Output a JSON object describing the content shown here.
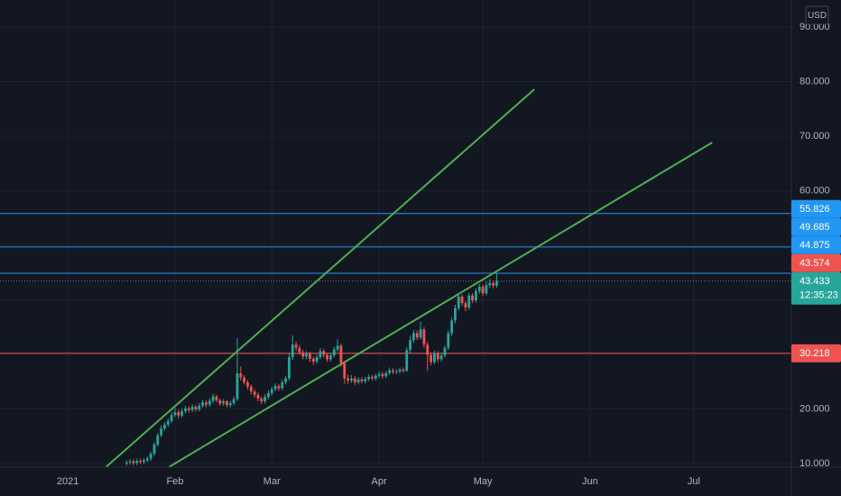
{
  "chart_data": {
    "type": "candlestick",
    "currency": "USD",
    "up_color": "#26a69a",
    "down_color": "#ef5350",
    "grid": true,
    "xlim": [
      -18.6,
      210.2
    ],
    "ylim": [
      9.34,
      94.96
    ],
    "xticks": [
      {
        "value": 1,
        "label": "2021"
      },
      {
        "value": 32,
        "label": "Feb"
      },
      {
        "value": 60,
        "label": "Mar"
      },
      {
        "value": 91,
        "label": "Apr"
      },
      {
        "value": 121,
        "label": "May"
      },
      {
        "value": 152,
        "label": "Jun"
      },
      {
        "value": 182,
        "label": "Jul"
      }
    ],
    "yticks": [
      {
        "value": 10,
        "label": "10.000"
      },
      {
        "value": 20,
        "label": "20.000"
      },
      {
        "value": 30,
        "label": "30.000"
      },
      {
        "value": 40,
        "label": "40.000"
      },
      {
        "value": 50,
        "label": "50.000"
      },
      {
        "value": 60,
        "label": "60.000"
      },
      {
        "value": 70,
        "label": "70.000"
      },
      {
        "value": 80,
        "label": "80.000"
      },
      {
        "value": 90,
        "label": "90.000"
      }
    ],
    "x": [
      18,
      19,
      20,
      21,
      22,
      23,
      24,
      25,
      26,
      27,
      28,
      29,
      30,
      31,
      32,
      33,
      34,
      35,
      36,
      37,
      38,
      39,
      40,
      41,
      42,
      43,
      44,
      45,
      46,
      47,
      48,
      49,
      50,
      51,
      52,
      53,
      54,
      55,
      56,
      57,
      58,
      59,
      60,
      61,
      62,
      63,
      64,
      65,
      66,
      67,
      68,
      69,
      70,
      71,
      72,
      73,
      74,
      75,
      76,
      77,
      78,
      79,
      80,
      81,
      82,
      83,
      84,
      85,
      86,
      87,
      88,
      89,
      90,
      91,
      92,
      93,
      94,
      95,
      96,
      97,
      98,
      99,
      100,
      101,
      102,
      103,
      104,
      105,
      106,
      107,
      108,
      109,
      110,
      111,
      112,
      113,
      114,
      115,
      116,
      117,
      118,
      119,
      120,
      121,
      122,
      123,
      124,
      125
    ],
    "open": [
      10.0,
      10.2,
      10.4,
      10.1,
      10.5,
      10.3,
      10.6,
      10.9,
      11.8,
      13.5,
      15.2,
      16.4,
      17.1,
      17.8,
      18.9,
      19.4,
      18.8,
      19.6,
      20.1,
      19.8,
      20.4,
      19.9,
      20.6,
      21.2,
      20.8,
      21.5,
      22.3,
      21.6,
      21.0,
      21.4,
      20.7,
      21.1,
      21.8,
      26.5,
      25.8,
      24.9,
      24.1,
      23.2,
      22.6,
      21.9,
      21.4,
      22.2,
      22.9,
      23.6,
      24.2,
      23.8,
      24.9,
      25.6,
      29.5,
      31.8,
      31.2,
      30.4,
      29.6,
      30.1,
      29.2,
      28.7,
      29.5,
      30.6,
      29.9,
      29.1,
      29.8,
      30.9,
      31.6,
      28.4,
      25.6,
      25.2,
      25.6,
      24.9,
      25.4,
      25.1,
      25.5,
      25.9,
      25.6,
      26.1,
      26.4,
      26.0,
      26.6,
      27.1,
      26.8,
      26.9,
      27.2,
      27.0,
      30.8,
      32.6,
      33.9,
      33.1,
      34.6,
      31.8,
      29.9,
      28.6,
      30.2,
      29.1,
      29.8,
      31.2,
      33.9,
      36.2,
      38.5,
      40.6,
      39.4,
      38.6,
      40.8,
      39.9,
      41.6,
      42.4,
      41.2,
      42.7,
      43.1,
      42.6
    ],
    "high": [
      10.6,
      10.8,
      10.8,
      10.9,
      10.9,
      11.0,
      11.3,
      12.2,
      13.9,
      15.6,
      17.0,
      17.6,
      18.3,
      19.4,
      20.2,
      19.9,
      20.1,
      20.6,
      20.5,
      20.9,
      20.8,
      21.1,
      21.7,
      21.6,
      22.0,
      22.8,
      22.6,
      21.9,
      21.8,
      21.7,
      21.5,
      22.3,
      33.0,
      27.8,
      26.2,
      25.3,
      24.5,
      23.6,
      23.0,
      22.3,
      22.7,
      23.4,
      24.1,
      24.7,
      24.6,
      25.4,
      26.1,
      30.2,
      33.5,
      32.4,
      31.7,
      30.9,
      30.6,
      30.5,
      29.6,
      30.0,
      31.2,
      31.0,
      30.3,
      30.3,
      31.4,
      32.8,
      32.0,
      28.8,
      26.3,
      26.2,
      26.0,
      25.8,
      25.8,
      25.9,
      26.3,
      26.3,
      26.5,
      26.9,
      26.8,
      27.0,
      27.6,
      27.5,
      27.3,
      27.6,
      27.6,
      31.3,
      33.4,
      34.5,
      34.4,
      36.0,
      35.0,
      32.3,
      30.4,
      30.7,
      30.6,
      30.3,
      31.7,
      34.4,
      36.8,
      39.1,
      41.2,
      41.0,
      39.8,
      41.3,
      41.2,
      42.1,
      42.9,
      42.8,
      43.3,
      43.8,
      43.6,
      44.9
    ],
    "low": [
      9.6,
      9.8,
      9.7,
      9.7,
      9.9,
      9.9,
      10.2,
      10.5,
      11.4,
      13.1,
      14.8,
      16.0,
      16.7,
      17.4,
      18.5,
      18.2,
      18.4,
      19.2,
      19.3,
      19.4,
      19.5,
      19.5,
      20.2,
      20.3,
      20.4,
      21.1,
      21.2,
      20.6,
      20.6,
      20.3,
      20.3,
      20.7,
      21.5,
      25.2,
      24.5,
      23.6,
      22.7,
      22.1,
      21.4,
      20.9,
      21.0,
      21.8,
      22.5,
      23.2,
      23.3,
      23.4,
      24.5,
      25.2,
      29.0,
      30.6,
      29.9,
      29.1,
      29.1,
      28.6,
      28.1,
      28.3,
      29.1,
      29.4,
      28.6,
      28.7,
      29.4,
      30.5,
      27.8,
      24.6,
      24.6,
      24.8,
      24.4,
      24.5,
      24.7,
      24.7,
      25.1,
      25.2,
      25.2,
      25.7,
      25.6,
      25.6,
      26.2,
      26.4,
      26.4,
      26.5,
      26.6,
      26.8,
      30.2,
      32.1,
      32.6,
      32.7,
      31.2,
      27.0,
      28.0,
      28.2,
      28.5,
      28.7,
      29.4,
      30.8,
      33.4,
      35.7,
      38.0,
      38.9,
      37.9,
      38.2,
      39.4,
      39.5,
      41.1,
      40.7,
      40.8,
      42.2,
      42.1,
      42.2
    ],
    "close": [
      10.2,
      10.4,
      10.1,
      10.5,
      10.3,
      10.6,
      10.9,
      11.8,
      13.5,
      15.2,
      16.4,
      17.1,
      17.8,
      18.9,
      19.4,
      18.8,
      19.6,
      20.1,
      19.8,
      20.4,
      19.9,
      20.6,
      21.2,
      20.8,
      21.5,
      22.3,
      21.6,
      21.0,
      21.4,
      20.7,
      21.1,
      21.8,
      26.5,
      25.8,
      24.9,
      24.1,
      23.2,
      22.6,
      21.9,
      21.4,
      22.2,
      22.9,
      23.6,
      24.2,
      23.8,
      24.9,
      25.6,
      29.5,
      31.8,
      31.2,
      30.4,
      29.6,
      30.1,
      29.2,
      28.7,
      29.5,
      30.6,
      29.9,
      29.1,
      29.8,
      30.9,
      31.6,
      28.4,
      25.6,
      25.2,
      25.6,
      24.9,
      25.4,
      25.1,
      25.5,
      25.9,
      25.6,
      26.1,
      26.4,
      26.0,
      26.6,
      27.1,
      26.8,
      26.9,
      27.2,
      27.0,
      30.8,
      32.6,
      33.9,
      33.1,
      34.6,
      31.8,
      29.9,
      28.6,
      30.2,
      29.1,
      29.8,
      31.2,
      33.9,
      36.2,
      38.5,
      40.6,
      39.4,
      38.6,
      40.8,
      39.9,
      41.6,
      42.4,
      41.2,
      42.7,
      43.1,
      42.6,
      43.433
    ],
    "trendlines": [
      {
        "x": [
          12.0,
          135.9
        ],
        "y": [
          9.34,
          78.6
        ],
        "color": "#4caf50"
      },
      {
        "x": [
          30.2,
          187.3
        ],
        "y": [
          9.34,
          68.84
        ],
        "color": "#4caf50"
      }
    ],
    "levels": [
      {
        "value": 55.826,
        "color": "#2196f3",
        "line_style": "solid"
      },
      {
        "value": 49.685,
        "color": "#2196f3",
        "line_style": "solid"
      },
      {
        "value": 44.875,
        "color": "#2196f3",
        "line_style": "solid"
      },
      {
        "value": 43.574,
        "color": "#ef5350",
        "line_style": "none"
      },
      {
        "value": 43.433,
        "color": "#26a69a",
        "line_style": "dotted",
        "countdown": "12:35:23"
      },
      {
        "value": 30.218,
        "color": "#ef5350",
        "line_style": "solid"
      }
    ]
  }
}
